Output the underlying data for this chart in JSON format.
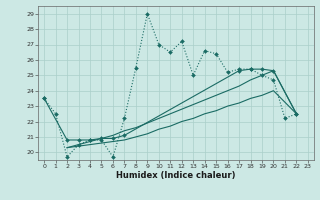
{
  "xlabel": "Humidex (Indice chaleur)",
  "background_color": "#cce8e4",
  "grid_color": "#aacfca",
  "line_color": "#1a6b64",
  "xlim": [
    -0.5,
    23.5
  ],
  "ylim": [
    19.5,
    29.5
  ],
  "xticks": [
    0,
    1,
    2,
    3,
    4,
    5,
    6,
    7,
    8,
    9,
    10,
    11,
    12,
    13,
    14,
    15,
    16,
    17,
    18,
    19,
    20,
    21,
    22,
    23
  ],
  "yticks": [
    20,
    21,
    22,
    23,
    24,
    25,
    26,
    27,
    28,
    29
  ],
  "s0_x": [
    0,
    1,
    2,
    3,
    4,
    5,
    6,
    7,
    8,
    9,
    10,
    11,
    12,
    13,
    14,
    15,
    16,
    17,
    18,
    19,
    20,
    21,
    22
  ],
  "s0_y": [
    23.5,
    22.5,
    19.7,
    20.5,
    20.8,
    20.8,
    19.7,
    22.2,
    25.5,
    29.0,
    27.0,
    26.5,
    27.2,
    25.0,
    26.6,
    26.4,
    25.2,
    25.4,
    25.4,
    25.0,
    24.7,
    22.2,
    22.5
  ],
  "s1_x": [
    0,
    2,
    3,
    4,
    5,
    6,
    7,
    17,
    18,
    19,
    20,
    22
  ],
  "s1_y": [
    23.5,
    20.8,
    20.8,
    20.8,
    20.9,
    20.9,
    21.1,
    25.3,
    25.4,
    25.4,
    25.3,
    22.5
  ],
  "s2_x": [
    2,
    3,
    4,
    5,
    6,
    7,
    8,
    9,
    10,
    11,
    12,
    13,
    14,
    15,
    16,
    17,
    18,
    19,
    20,
    22
  ],
  "s2_y": [
    20.3,
    20.4,
    20.5,
    20.6,
    20.7,
    20.8,
    21.0,
    21.2,
    21.5,
    21.7,
    22.0,
    22.2,
    22.5,
    22.7,
    23.0,
    23.2,
    23.5,
    23.7,
    24.0,
    22.5
  ],
  "s3_x": [
    2,
    3,
    4,
    5,
    6,
    7,
    8,
    9,
    10,
    11,
    12,
    13,
    14,
    15,
    16,
    17,
    18,
    19,
    20,
    22
  ],
  "s3_y": [
    20.3,
    20.5,
    20.7,
    20.9,
    21.1,
    21.4,
    21.6,
    21.9,
    22.2,
    22.5,
    22.8,
    23.1,
    23.4,
    23.7,
    24.0,
    24.3,
    24.7,
    25.0,
    25.3,
    22.5
  ]
}
